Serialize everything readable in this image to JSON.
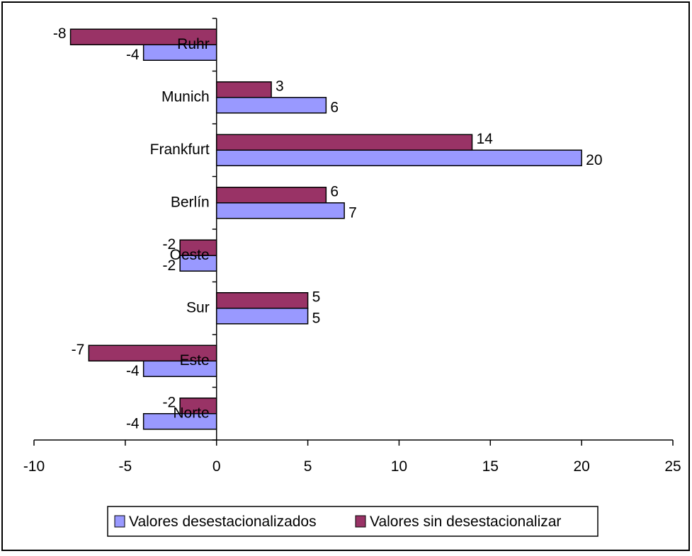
{
  "chart_data": {
    "type": "bar",
    "orientation": "horizontal",
    "categories": [
      "Ruhr",
      "Munich",
      "Frankfurt",
      "Berlín",
      "Oeste",
      "Sur",
      "Este",
      "Norte"
    ],
    "series": [
      {
        "name": "Valores sin desestacionalizar",
        "values": [
          -8,
          3,
          14,
          6,
          -2,
          5,
          -7,
          -2
        ],
        "color": "#993366"
      },
      {
        "name": "Valores desestacionalizados",
        "values": [
          -4,
          6,
          20,
          7,
          -2,
          5,
          -4,
          -4
        ],
        "color": "#9999ff"
      }
    ],
    "title": "",
    "xlabel": "",
    "ylabel": "",
    "xlim": [
      -10,
      25
    ],
    "xticks": [
      -10,
      -5,
      0,
      5,
      10,
      15,
      20,
      25
    ],
    "legend": {
      "position": "bottom",
      "entries": [
        "Valores desestacionalizados",
        "Valores sin desestacionalizar"
      ]
    },
    "grid": false
  }
}
